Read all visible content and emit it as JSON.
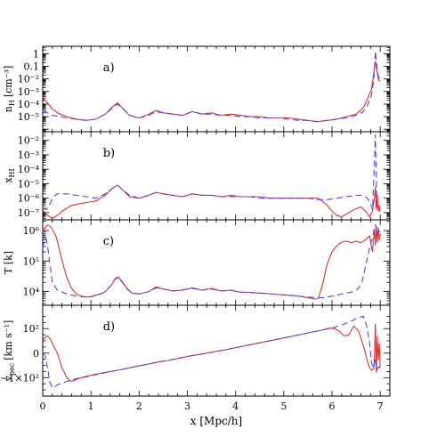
{
  "figure": {
    "x_axis": {
      "label": "x [Mpc/h]",
      "ticks": [
        "0",
        "1",
        "2",
        "3",
        "4",
        "5",
        "6",
        "7"
      ],
      "range": [
        0,
        7.2
      ]
    },
    "panels": [
      {
        "tag": "a)",
        "ylabel_main": "n",
        "ylabel_sub": "H",
        "ylabel_unit": "[cm⁻³]",
        "ylabel": "n_H [cm^-3]",
        "ylim": [
          -6.2,
          0.6
        ],
        "scale": "log",
        "ticks": [
          {
            "v": 0,
            "text": "1"
          },
          {
            "v": -1,
            "text": "0.1"
          },
          {
            "v": -2,
            "text": "10⁻²"
          },
          {
            "v": -3,
            "text": "10⁻³"
          },
          {
            "v": -4,
            "text": "10⁻⁴"
          },
          {
            "v": -5,
            "text": "10⁻⁵"
          }
        ]
      },
      {
        "tag": "b)",
        "ylabel_main": "x",
        "ylabel_sub": "HI",
        "ylabel_unit": "",
        "ylabel": "x_HI",
        "ylim": [
          -7.5,
          -1.4
        ],
        "scale": "log",
        "ticks": [
          {
            "v": -2,
            "text": "10⁻²"
          },
          {
            "v": -3,
            "text": "10⁻³"
          },
          {
            "v": -4,
            "text": "10⁻⁴"
          },
          {
            "v": -5,
            "text": "10⁻⁵"
          },
          {
            "v": -6,
            "text": "10⁻⁶"
          },
          {
            "v": -7,
            "text": "10⁻⁷"
          }
        ]
      },
      {
        "tag": "c)",
        "ylabel_main": "T [k]",
        "ylabel_sub": "",
        "ylabel_unit": "",
        "ylabel": "T [k]",
        "ylim": [
          3.55,
          6.35
        ],
        "scale": "log",
        "ticks": [
          {
            "v": 6,
            "text": "10⁶"
          },
          {
            "v": 5,
            "text": "10⁵"
          },
          {
            "v": 4,
            "text": "10⁴"
          }
        ]
      },
      {
        "tag": "d)",
        "ylabel_main": "v",
        "ylabel_sub": "pec",
        "ylabel_unit": "[km s⁻¹]",
        "ylabel": "v_pec [km s^-1]",
        "ylim": [
          -175,
          195
        ],
        "scale": "linear",
        "ticks": [
          {
            "v": 100,
            "text": "10²"
          },
          {
            "v": 0,
            "text": "0"
          },
          {
            "v": -100,
            "text": "−1×10²"
          }
        ]
      }
    ]
  },
  "chart_data": [
    {
      "type": "line",
      "panel": "a)",
      "ylabel": "n_H [cm^-3]",
      "yscale": "log",
      "series": [
        {
          "color": "#e03030",
          "style": "solid",
          "x": [
            0.0,
            0.1,
            0.2,
            0.35,
            0.5,
            0.7,
            0.9,
            1.1,
            1.3,
            1.45,
            1.55,
            1.65,
            1.8,
            2.0,
            2.2,
            2.35,
            2.5,
            2.7,
            2.9,
            3.1,
            3.3,
            3.5,
            3.7,
            3.9,
            4.1,
            4.3,
            4.5,
            4.7,
            4.9,
            5.1,
            5.3,
            5.5,
            5.7,
            5.9,
            6.1,
            6.3,
            6.5,
            6.65,
            6.75,
            6.82,
            6.87,
            6.9,
            6.93,
            6.96,
            7.0
          ],
          "y": [
            -3.5,
            -3.9,
            -4.4,
            -4.8,
            -5.0,
            -5.2,
            -5.3,
            -5.2,
            -4.8,
            -4.2,
            -3.9,
            -4.3,
            -4.9,
            -5.1,
            -4.8,
            -4.5,
            -4.7,
            -4.8,
            -4.9,
            -4.6,
            -4.8,
            -4.7,
            -4.9,
            -4.8,
            -4.9,
            -5.0,
            -5.0,
            -5.1,
            -5.1,
            -5.1,
            -5.2,
            -5.3,
            -5.4,
            -5.3,
            -5.2,
            -5.0,
            -4.8,
            -4.3,
            -3.5,
            -2.8,
            -1.5,
            -0.6,
            -1.3,
            -2.0,
            -2.2
          ]
        },
        {
          "color": "#4a4af0",
          "style": "dashed",
          "x": [
            0.0,
            0.1,
            0.2,
            0.35,
            0.5,
            0.7,
            0.9,
            1.1,
            1.3,
            1.45,
            1.55,
            1.65,
            1.8,
            2.0,
            2.2,
            2.35,
            2.5,
            2.7,
            2.9,
            3.1,
            3.3,
            3.5,
            3.7,
            3.9,
            4.1,
            4.3,
            4.5,
            4.7,
            4.9,
            5.1,
            5.3,
            5.5,
            5.7,
            5.9,
            6.1,
            6.3,
            6.5,
            6.65,
            6.75,
            6.82,
            6.87,
            6.9,
            6.93,
            6.96,
            7.0
          ],
          "y": [
            -4.5,
            -4.7,
            -4.9,
            -5.0,
            -5.1,
            -5.2,
            -5.3,
            -5.2,
            -4.8,
            -4.3,
            -4.0,
            -4.3,
            -4.9,
            -5.1,
            -4.9,
            -4.6,
            -4.7,
            -4.8,
            -4.9,
            -4.6,
            -4.8,
            -4.8,
            -4.9,
            -4.9,
            -5.0,
            -5.0,
            -5.1,
            -5.1,
            -5.1,
            -5.2,
            -5.3,
            -5.3,
            -5.4,
            -5.3,
            -5.2,
            -5.1,
            -4.9,
            -4.6,
            -4.0,
            -3.3,
            -2.0,
            0.2,
            -1.0,
            -1.8,
            -2.0
          ]
        }
      ]
    },
    {
      "type": "line",
      "panel": "b)",
      "ylabel": "x_HI",
      "yscale": "log",
      "series": [
        {
          "color": "#e03030",
          "style": "solid",
          "x": [
            0.0,
            0.1,
            0.2,
            0.3,
            0.4,
            0.5,
            0.6,
            0.75,
            0.9,
            1.1,
            1.3,
            1.45,
            1.55,
            1.65,
            1.8,
            2.0,
            2.2,
            2.35,
            2.5,
            2.7,
            2.9,
            3.1,
            3.3,
            3.5,
            3.7,
            3.9,
            4.1,
            4.3,
            4.5,
            4.7,
            4.9,
            5.1,
            5.3,
            5.5,
            5.7,
            5.8,
            5.9,
            6.0,
            6.1,
            6.2,
            6.3,
            6.45,
            6.6,
            6.7,
            6.78,
            6.84,
            6.88,
            6.9,
            6.92,
            6.94,
            6.96,
            6.98,
            7.0
          ],
          "y": [
            -6.8,
            -7.2,
            -7.4,
            -7.2,
            -6.9,
            -6.7,
            -6.5,
            -6.4,
            -6.3,
            -6.2,
            -5.8,
            -5.3,
            -5.1,
            -5.4,
            -5.9,
            -6.0,
            -5.8,
            -5.6,
            -5.7,
            -5.8,
            -5.9,
            -5.7,
            -5.8,
            -5.8,
            -5.9,
            -5.8,
            -5.9,
            -5.9,
            -5.9,
            -6.0,
            -6.0,
            -6.0,
            -6.0,
            -6.0,
            -6.0,
            -6.2,
            -6.5,
            -6.9,
            -7.2,
            -7.3,
            -7.1,
            -6.8,
            -6.6,
            -6.9,
            -7.3,
            -6.9,
            -6.0,
            -5.2,
            -6.8,
            -5.8,
            -6.9,
            -6.5,
            -6.9
          ]
        },
        {
          "color": "#4a4af0",
          "style": "dashed",
          "x": [
            0.0,
            0.08,
            0.15,
            0.22,
            0.3,
            0.5,
            0.7,
            0.9,
            1.1,
            1.3,
            1.45,
            1.55,
            1.65,
            1.8,
            2.0,
            2.2,
            2.35,
            2.5,
            2.7,
            2.9,
            3.1,
            3.3,
            3.5,
            3.7,
            3.9,
            4.1,
            4.3,
            4.5,
            4.7,
            4.9,
            5.1,
            5.3,
            5.5,
            5.7,
            5.9,
            6.1,
            6.3,
            6.5,
            6.6,
            6.7,
            6.78,
            6.84,
            6.88,
            6.9,
            6.93,
            6.96,
            7.0
          ],
          "y": [
            -6.7,
            -6.8,
            -6.4,
            -5.9,
            -5.7,
            -5.7,
            -5.8,
            -5.9,
            -6.0,
            -5.7,
            -5.3,
            -5.1,
            -5.4,
            -5.8,
            -6.0,
            -5.8,
            -5.6,
            -5.7,
            -5.8,
            -5.9,
            -5.7,
            -5.8,
            -5.8,
            -5.9,
            -5.9,
            -5.9,
            -5.9,
            -6.0,
            -6.0,
            -6.0,
            -6.0,
            -6.0,
            -6.0,
            -6.1,
            -6.1,
            -6.0,
            -5.9,
            -5.8,
            -5.8,
            -5.9,
            -6.2,
            -6.8,
            -3.5,
            -1.6,
            -6.5,
            -6.8,
            -6.9
          ]
        }
      ]
    },
    {
      "type": "line",
      "panel": "c)",
      "ylabel": "T [k]",
      "yscale": "log",
      "series": [
        {
          "color": "#e03030",
          "style": "solid",
          "x": [
            0.0,
            0.05,
            0.1,
            0.15,
            0.2,
            0.28,
            0.35,
            0.42,
            0.5,
            0.6,
            0.7,
            0.8,
            0.9,
            1.0,
            1.1,
            1.2,
            1.3,
            1.42,
            1.5,
            1.57,
            1.65,
            1.75,
            1.85,
            2.0,
            2.2,
            2.35,
            2.5,
            2.7,
            2.9,
            3.1,
            3.3,
            3.5,
            3.7,
            3.9,
            4.1,
            4.3,
            4.5,
            4.7,
            4.9,
            5.1,
            5.3,
            5.5,
            5.65,
            5.72,
            5.8,
            5.9,
            6.0,
            6.1,
            6.2,
            6.3,
            6.4,
            6.5,
            6.6,
            6.7,
            6.78,
            6.84,
            6.88,
            6.9,
            6.92,
            6.94,
            6.96,
            6.98,
            7.0
          ],
          "y": [
            5.95,
            6.1,
            6.18,
            6.15,
            6.05,
            5.8,
            5.35,
            4.9,
            4.45,
            4.1,
            3.92,
            3.85,
            3.82,
            3.83,
            3.88,
            3.92,
            4.0,
            4.2,
            4.42,
            4.48,
            4.32,
            4.1,
            3.95,
            3.92,
            4.0,
            4.15,
            4.08,
            4.02,
            4.05,
            4.12,
            4.05,
            4.1,
            4.02,
            4.05,
            3.98,
            3.97,
            3.95,
            3.93,
            3.9,
            3.88,
            3.85,
            3.8,
            3.75,
            3.78,
            4.2,
            4.9,
            5.3,
            5.5,
            5.62,
            5.65,
            5.6,
            5.65,
            5.6,
            5.7,
            5.82,
            5.3,
            6.05,
            5.5,
            6.15,
            5.6,
            6.1,
            5.7,
            5.9
          ]
        },
        {
          "color": "#4a4af0",
          "style": "dashed",
          "x": [
            0.0,
            0.05,
            0.1,
            0.15,
            0.2,
            0.3,
            0.45,
            0.6,
            0.75,
            0.9,
            1.0,
            1.1,
            1.2,
            1.3,
            1.42,
            1.5,
            1.57,
            1.65,
            1.75,
            1.85,
            2.0,
            2.2,
            2.35,
            2.5,
            2.7,
            2.9,
            3.1,
            3.3,
            3.5,
            3.7,
            3.9,
            4.1,
            4.3,
            4.5,
            4.7,
            4.9,
            5.1,
            5.3,
            5.5,
            5.7,
            5.85,
            6.0,
            6.15,
            6.3,
            6.45,
            6.55,
            6.62,
            6.68,
            6.72,
            6.76,
            6.8,
            6.84,
            6.87,
            6.9,
            6.93,
            6.96,
            7.0
          ],
          "y": [
            5.4,
            5.9,
            5.5,
            4.9,
            4.3,
            4.05,
            3.95,
            3.88,
            3.84,
            3.82,
            3.83,
            3.88,
            3.92,
            4.0,
            4.2,
            4.4,
            4.45,
            4.3,
            4.08,
            3.95,
            3.92,
            4.0,
            4.12,
            4.08,
            4.02,
            4.06,
            4.1,
            4.05,
            4.08,
            4.02,
            4.04,
            3.98,
            3.97,
            3.95,
            3.93,
            3.9,
            3.88,
            3.85,
            3.82,
            3.8,
            3.8,
            3.85,
            3.9,
            3.95,
            4.0,
            4.1,
            4.3,
            4.7,
            5.0,
            5.3,
            5.55,
            5.75,
            6.0,
            6.2,
            5.9,
            6.0,
            5.95
          ]
        }
      ]
    },
    {
      "type": "line",
      "panel": "d)",
      "ylabel": "v_pec [km s^-1]",
      "yscale": "linear",
      "series": [
        {
          "color": "#e03030",
          "style": "solid",
          "x": [
            0.0,
            0.05,
            0.1,
            0.15,
            0.2,
            0.25,
            0.3,
            0.35,
            0.4,
            0.45,
            0.5,
            0.55,
            0.6,
            0.7,
            0.8,
            0.9,
            1.0,
            1.2,
            1.4,
            1.6,
            1.8,
            2.0,
            2.2,
            2.4,
            2.6,
            2.8,
            3.0,
            3.2,
            3.4,
            3.6,
            3.8,
            4.0,
            4.2,
            4.4,
            4.6,
            4.8,
            5.0,
            5.2,
            5.4,
            5.6,
            5.8,
            5.95,
            6.05,
            6.15,
            6.25,
            6.35,
            6.45,
            6.55,
            6.62,
            6.68,
            6.73,
            6.78,
            6.82,
            6.86,
            6.88,
            6.9,
            6.92,
            6.94,
            6.96,
            6.98,
            7.0
          ],
          "y": [
            50,
            65,
            70,
            60,
            40,
            20,
            0,
            -30,
            -60,
            -80,
            -100,
            -110,
            -115,
            -108,
            -100,
            -95,
            -90,
            -82,
            -75,
            -68,
            -60,
            -52,
            -44,
            -36,
            -30,
            -22,
            -14,
            -7,
            0,
            7,
            14,
            22,
            30,
            38,
            46,
            54,
            62,
            70,
            78,
            86,
            94,
            102,
            100,
            90,
            70,
            75,
            110,
            90,
            50,
            10,
            -30,
            -60,
            -70,
            -65,
            -20,
            120,
            -80,
            70,
            -30,
            40,
            -60
          ]
        },
        {
          "color": "#4a4af0",
          "style": "dashed",
          "x": [
            0.0,
            0.05,
            0.1,
            0.15,
            0.2,
            0.25,
            0.3,
            0.4,
            0.5,
            0.6,
            0.7,
            0.8,
            0.9,
            1.0,
            1.2,
            1.4,
            1.6,
            1.8,
            2.0,
            2.2,
            2.4,
            2.6,
            2.8,
            3.0,
            3.2,
            3.4,
            3.6,
            3.8,
            4.0,
            4.2,
            4.4,
            4.6,
            4.8,
            5.0,
            5.2,
            5.4,
            5.6,
            5.8,
            6.0,
            6.2,
            6.4,
            6.55,
            6.65,
            6.72,
            6.78,
            6.82,
            6.86,
            6.9,
            6.93,
            6.96,
            7.0
          ],
          "y": [
            0,
            -10,
            -60,
            -120,
            -140,
            -138,
            -130,
            -122,
            -115,
            -110,
            -104,
            -100,
            -97,
            -92,
            -84,
            -76,
            -68,
            -60,
            -52,
            -44,
            -36,
            -30,
            -22,
            -14,
            -7,
            0,
            7,
            14,
            22,
            30,
            38,
            46,
            54,
            62,
            70,
            78,
            86,
            94,
            102,
            115,
            130,
            145,
            150,
            110,
            40,
            -40,
            -60,
            -20,
            -70,
            -55,
            -60
          ]
        }
      ]
    }
  ]
}
